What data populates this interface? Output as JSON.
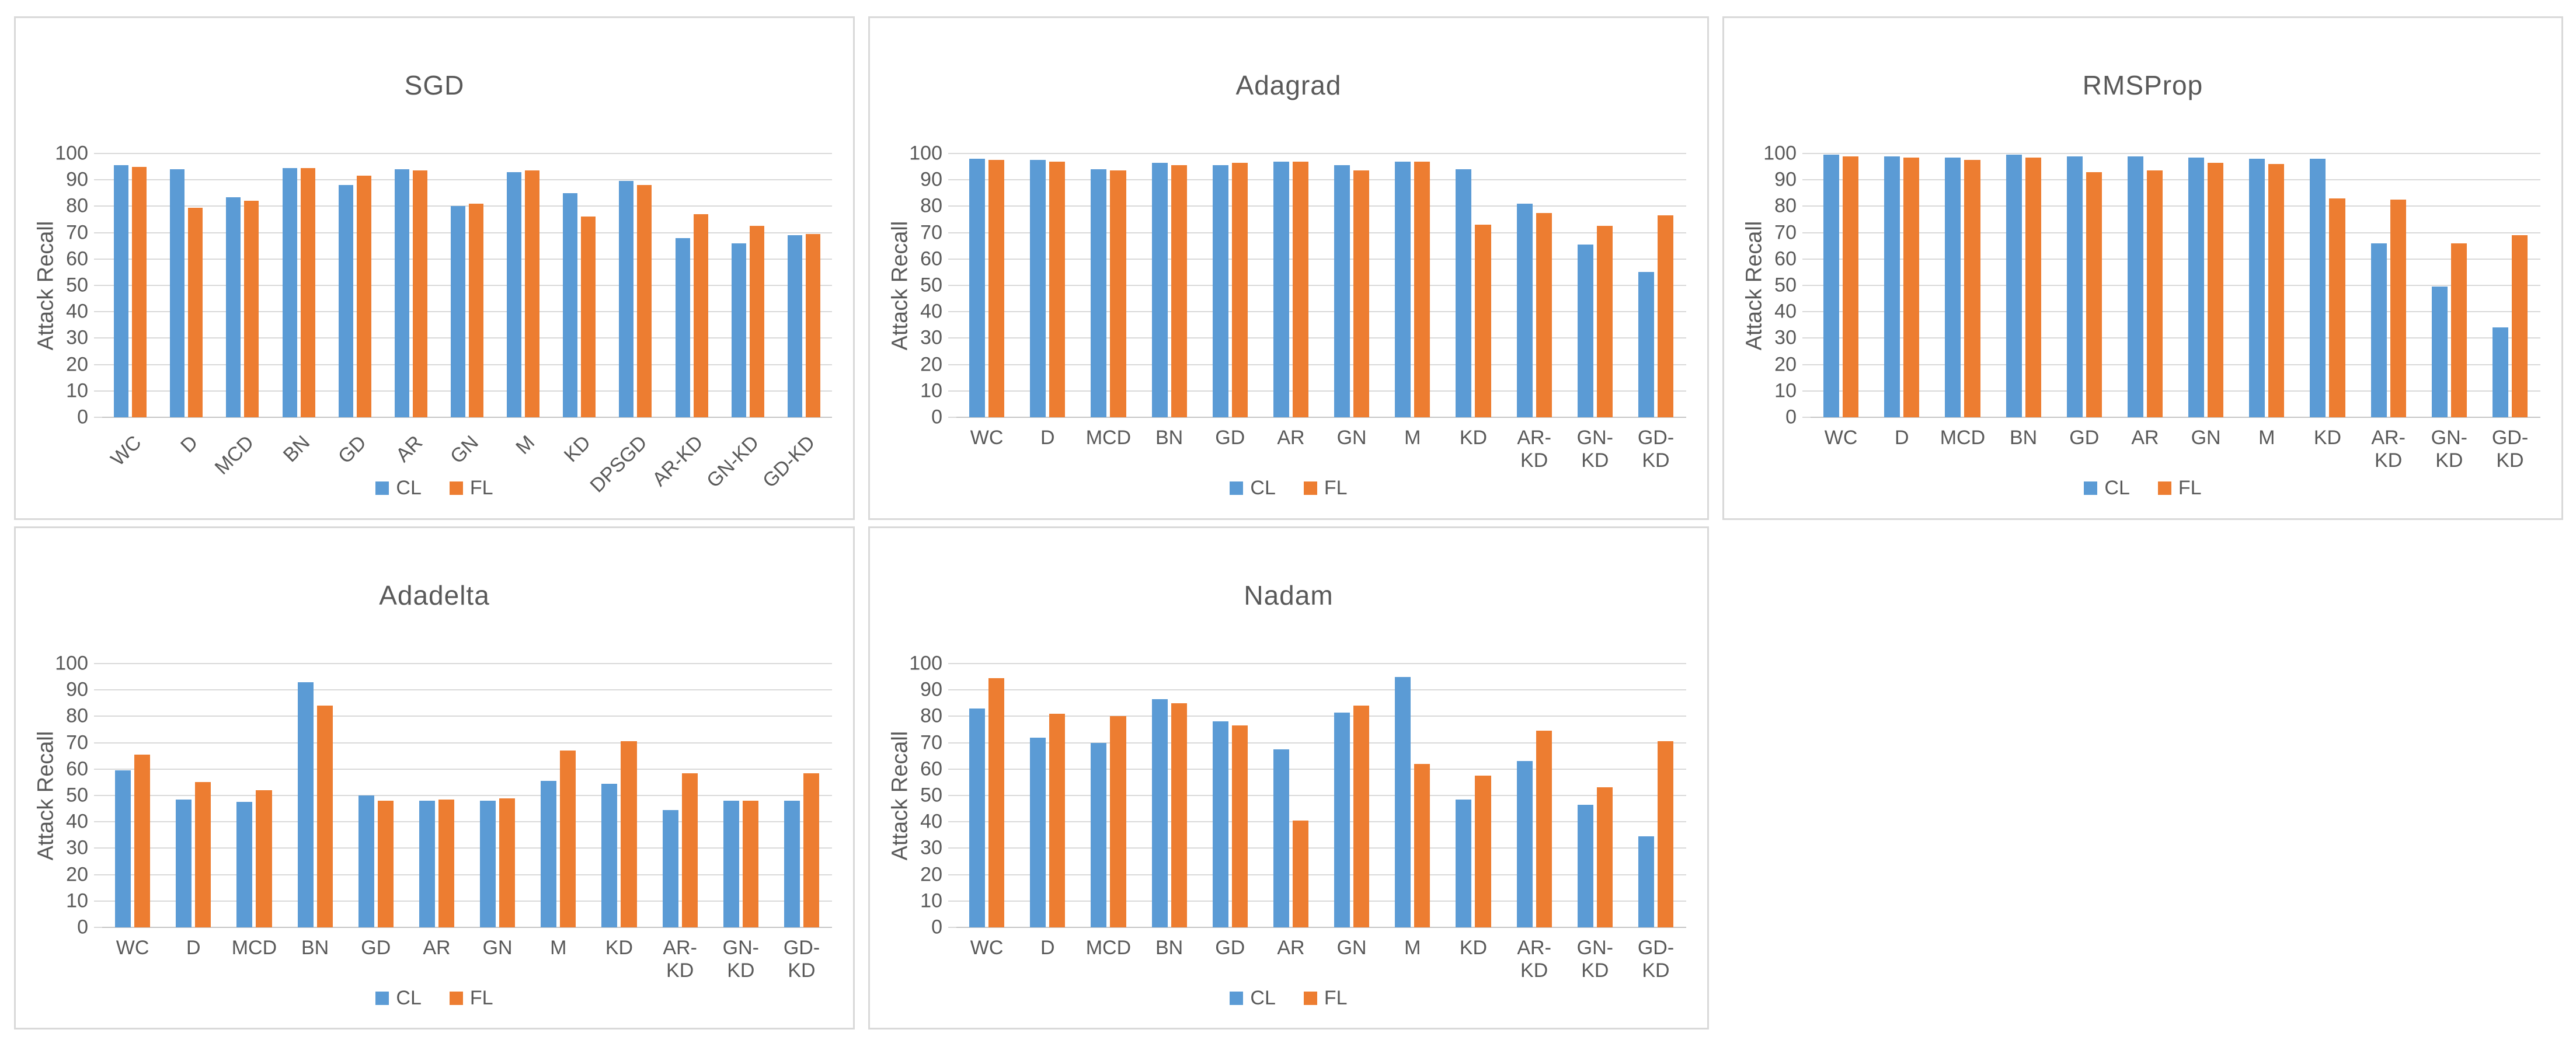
{
  "figure": {
    "ylabel": "Attack Recall",
    "legend": {
      "cl_label": "CL",
      "fl_label": "FL"
    }
  },
  "colors": {
    "cl_series": "#5b9bd5",
    "fl_series": "#ed7d31",
    "gridline": "#d9d9d9",
    "axis_line": "#c6c6c6",
    "text": "#595959",
    "panel_border": "#d9d9d9"
  },
  "chart_data": [
    {
      "type": "bar",
      "title": "SGD",
      "ylabel": "Attack Recall",
      "ylim": [
        0,
        100
      ],
      "ytick_step": 10,
      "grid": true,
      "legend_position": "bottom",
      "rotated_category_labels": true,
      "categories": [
        "WC",
        "D",
        "MCD",
        "BN",
        "GD",
        "AR",
        "GN",
        "M",
        "KD",
        "DPSGD",
        "AR-KD",
        "GN-KD",
        "GD-KD"
      ],
      "series": [
        {
          "name": "CL",
          "values": [
            95.5,
            94,
            83.5,
            94.5,
            88,
            94,
            80,
            93,
            85,
            89.5,
            68,
            66,
            69
          ]
        },
        {
          "name": "FL",
          "values": [
            95,
            79.5,
            82,
            94.5,
            91.5,
            93.5,
            81,
            93.5,
            76,
            88,
            77,
            72.5,
            69.5
          ]
        }
      ]
    },
    {
      "type": "bar",
      "title": "Adagrad",
      "ylabel": "Attack Recall",
      "ylim": [
        0,
        100
      ],
      "ytick_step": 10,
      "grid": true,
      "legend_position": "bottom",
      "rotated_category_labels": false,
      "categories": [
        "WC",
        "D",
        "MCD",
        "BN",
        "GD",
        "AR",
        "GN",
        "M",
        "KD",
        "AR-KD",
        "GN-KD",
        "GD-KD"
      ],
      "series": [
        {
          "name": "CL",
          "values": [
            98,
            97.5,
            94,
            96.5,
            95.5,
            97,
            95.5,
            97,
            94,
            81,
            65.5,
            55
          ]
        },
        {
          "name": "FL",
          "values": [
            97.5,
            97,
            93.5,
            95.5,
            96.5,
            97,
            93.5,
            97,
            73,
            77.5,
            72.5,
            76.5
          ]
        }
      ]
    },
    {
      "type": "bar",
      "title": "RMSProp",
      "ylabel": "Attack Recall",
      "ylim": [
        0,
        100
      ],
      "ytick_step": 10,
      "grid": true,
      "legend_position": "bottom",
      "rotated_category_labels": false,
      "categories": [
        "WC",
        "D",
        "MCD",
        "BN",
        "GD",
        "AR",
        "GN",
        "M",
        "KD",
        "AR-KD",
        "GN-KD",
        "GD-KD"
      ],
      "series": [
        {
          "name": "CL",
          "values": [
            99.5,
            99,
            98.5,
            99.5,
            99,
            99,
            98.5,
            98,
            98,
            66,
            49.5,
            34
          ]
        },
        {
          "name": "FL",
          "values": [
            99,
            98.5,
            97.5,
            98.5,
            93,
            93.5,
            96.5,
            96,
            83,
            82.5,
            66,
            69
          ]
        }
      ]
    },
    {
      "type": "bar",
      "title": "Adadelta",
      "ylabel": "Attack Recall",
      "ylim": [
        0,
        100
      ],
      "ytick_step": 10,
      "grid": true,
      "legend_position": "bottom",
      "rotated_category_labels": false,
      "categories": [
        "WC",
        "D",
        "MCD",
        "BN",
        "GD",
        "AR",
        "GN",
        "M",
        "KD",
        "AR-KD",
        "GN-KD",
        "GD-KD"
      ],
      "series": [
        {
          "name": "CL",
          "values": [
            59.5,
            48.5,
            47.5,
            93,
            50,
            48,
            48,
            55.5,
            54.5,
            44.5,
            48,
            48
          ]
        },
        {
          "name": "FL",
          "values": [
            65.5,
            55,
            52,
            84,
            48,
            48.5,
            49,
            67,
            70.5,
            58.5,
            48,
            58.5
          ]
        }
      ]
    },
    {
      "type": "bar",
      "title": "Nadam",
      "ylabel": "Attack Recall",
      "ylim": [
        0,
        100
      ],
      "ytick_step": 10,
      "grid": true,
      "legend_position": "bottom",
      "rotated_category_labels": false,
      "categories": [
        "WC",
        "D",
        "MCD",
        "BN",
        "GD",
        "AR",
        "GN",
        "M",
        "KD",
        "AR-KD",
        "GN-KD",
        "GD-KD"
      ],
      "series": [
        {
          "name": "CL",
          "values": [
            83,
            72,
            70,
            86.5,
            78,
            67.5,
            81.5,
            95,
            48.5,
            63,
            46.5,
            34.5
          ]
        },
        {
          "name": "FL",
          "values": [
            94.5,
            81,
            80,
            85,
            76.5,
            40.5,
            84,
            62,
            57.5,
            74.5,
            53,
            70.5
          ]
        }
      ]
    }
  ]
}
